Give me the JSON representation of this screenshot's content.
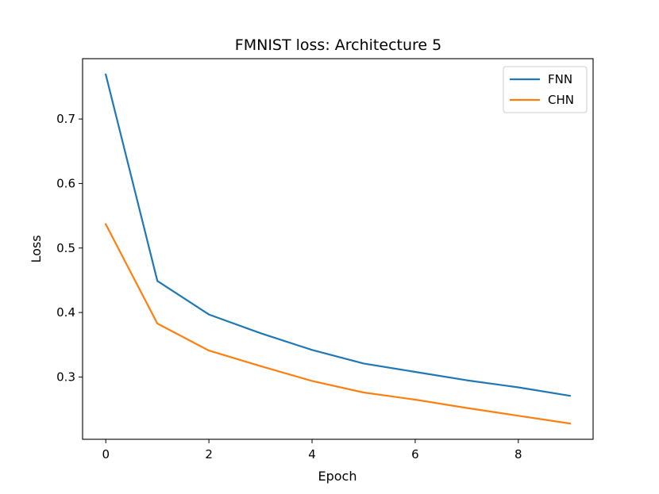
{
  "chart_data": {
    "type": "line",
    "title": "FMNIST loss: Architecture 5",
    "xlabel": "Epoch",
    "ylabel": "Loss",
    "x": [
      0,
      1,
      2,
      3,
      4,
      5,
      6,
      7,
      8,
      9
    ],
    "xlim": [
      -0.45,
      9.45
    ],
    "ylim": [
      0.2035,
      0.7935
    ],
    "xticks": [
      0,
      2,
      4,
      6,
      8
    ],
    "yticks": [
      0.3,
      0.4,
      0.5,
      0.6,
      0.7
    ],
    "grid": false,
    "legend_position": "top-right",
    "series": [
      {
        "name": "FNN",
        "color": "#1f77b4",
        "values": [
          0.769,
          0.449,
          0.397,
          0.368,
          0.342,
          0.321,
          0.308,
          0.295,
          0.284,
          0.271
        ]
      },
      {
        "name": "CHN",
        "color": "#ff7f0e",
        "values": [
          0.537,
          0.383,
          0.341,
          0.317,
          0.294,
          0.276,
          0.265,
          0.252,
          0.24,
          0.228
        ]
      }
    ]
  }
}
